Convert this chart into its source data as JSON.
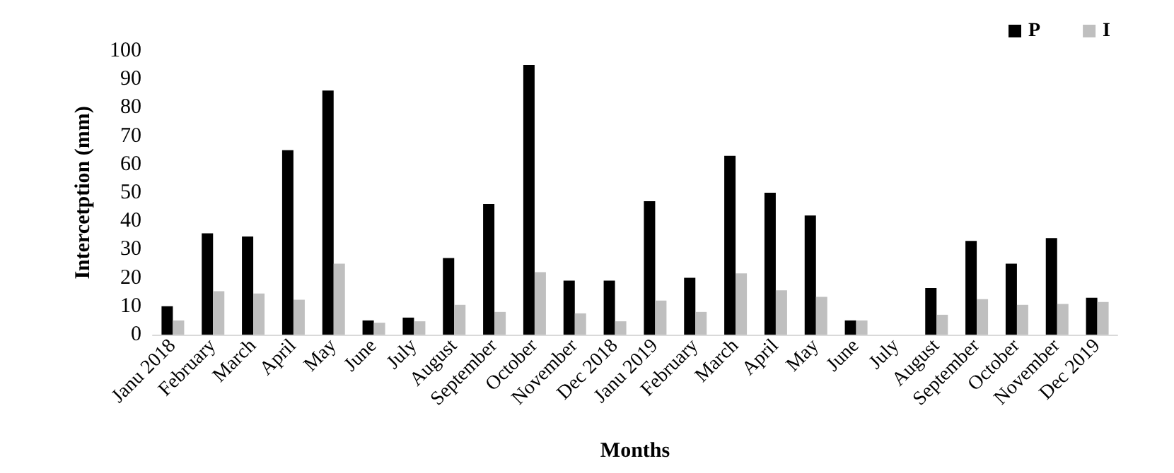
{
  "chart_data": {
    "type": "bar",
    "xlabel": "Months",
    "ylabel": "Intercetption (mm)",
    "categories": [
      "Janu 2018",
      "February",
      "March",
      "April",
      "May",
      "June",
      "July",
      "August",
      "September",
      "October",
      "November",
      "Dec 2018",
      "Janu 2019",
      "February",
      "March",
      "April",
      "May",
      "June",
      "July",
      "August",
      "September",
      "October",
      "November",
      "Dec 2019"
    ],
    "series": [
      {
        "name": "P",
        "color": "#000000",
        "values": [
          10,
          35.7,
          34.6,
          65,
          86,
          5,
          6,
          27,
          46,
          95,
          19,
          19,
          47,
          20,
          63,
          50,
          42,
          5,
          0,
          16.4,
          33,
          25,
          34,
          13
        ]
      },
      {
        "name": "I",
        "color": "#bfbfbf",
        "values": [
          5,
          15.3,
          14.5,
          12.3,
          25,
          4.2,
          4.7,
          10.5,
          8,
          22,
          7.5,
          4.7,
          12,
          8,
          21.6,
          15.6,
          13.3,
          5,
          0,
          7,
          12.5,
          10.5,
          10.8,
          11.5
        ]
      }
    ],
    "ylim": [
      0,
      100
    ],
    "yticks": [
      0,
      10,
      20,
      30,
      40,
      50,
      60,
      70,
      80,
      90,
      100
    ],
    "grid": false,
    "legend": "top right"
  }
}
